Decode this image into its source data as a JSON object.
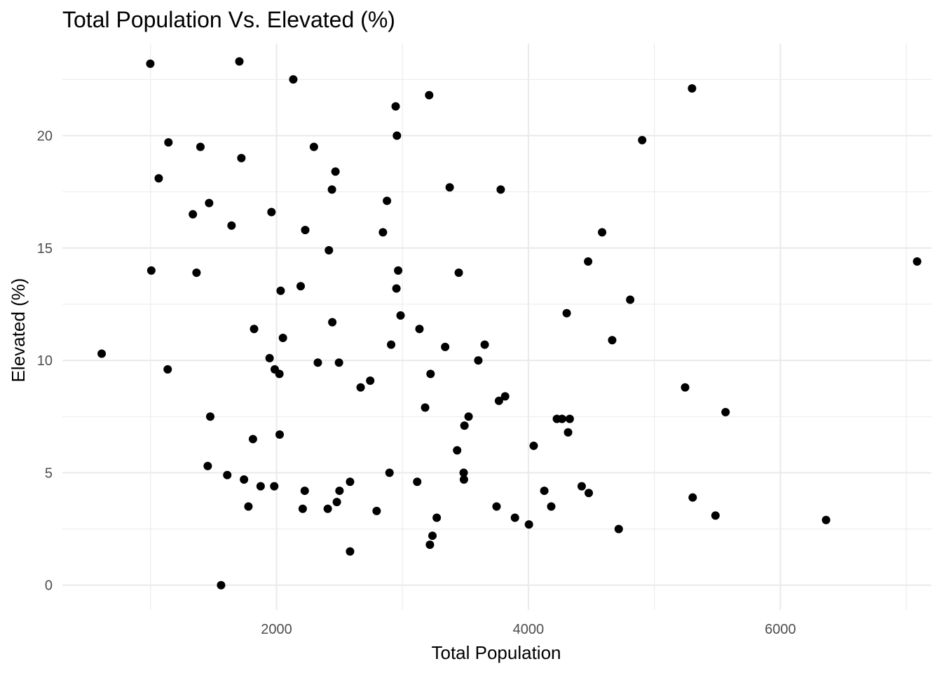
{
  "chart_data": {
    "type": "scatter",
    "title": "Total Population Vs. Elevated (%)",
    "xlabel": "Total Population",
    "ylabel": "Elevated (%)",
    "xlim": [
      300,
      7200
    ],
    "ylim": [
      -1.1,
      24.1
    ],
    "x_ticks": [
      2000,
      4000,
      6000
    ],
    "x_tick_labels": [
      "2000",
      "4000",
      "6000"
    ],
    "x_minor_ticks": [
      1000,
      3000,
      5000,
      7000
    ],
    "y_ticks": [
      0,
      5,
      10,
      15,
      20
    ],
    "y_tick_labels": [
      "0",
      "5",
      "10",
      "15",
      "20"
    ],
    "y_minor_ticks": [
      2.5,
      7.5,
      12.5,
      17.5,
      22.5
    ],
    "grid": true,
    "legend": "none",
    "point_color": "#000000",
    "points": [
      {
        "x": 998,
        "y": 23.2
      },
      {
        "x": 1705,
        "y": 23.3
      },
      {
        "x": 2133,
        "y": 22.5
      },
      {
        "x": 3212,
        "y": 21.8
      },
      {
        "x": 2946,
        "y": 21.3
      },
      {
        "x": 5299,
        "y": 22.1
      },
      {
        "x": 1142,
        "y": 19.7
      },
      {
        "x": 1396,
        "y": 19.5
      },
      {
        "x": 2297,
        "y": 19.5
      },
      {
        "x": 2956,
        "y": 20.0
      },
      {
        "x": 4903,
        "y": 19.8
      },
      {
        "x": 1721,
        "y": 19.0
      },
      {
        "x": 1065,
        "y": 18.1
      },
      {
        "x": 2468,
        "y": 18.4
      },
      {
        "x": 3375,
        "y": 17.7
      },
      {
        "x": 3780,
        "y": 17.6
      },
      {
        "x": 2440,
        "y": 17.6
      },
      {
        "x": 2877,
        "y": 17.1
      },
      {
        "x": 1465,
        "y": 17.0
      },
      {
        "x": 1336,
        "y": 16.5
      },
      {
        "x": 1960,
        "y": 16.6
      },
      {
        "x": 1643,
        "y": 16.0
      },
      {
        "x": 2228,
        "y": 15.8
      },
      {
        "x": 2845,
        "y": 15.7
      },
      {
        "x": 4585,
        "y": 15.7
      },
      {
        "x": 2416,
        "y": 14.9
      },
      {
        "x": 4474,
        "y": 14.4
      },
      {
        "x": 7086,
        "y": 14.4
      },
      {
        "x": 1006,
        "y": 14.0
      },
      {
        "x": 1365,
        "y": 13.9
      },
      {
        "x": 2966,
        "y": 14.0
      },
      {
        "x": 3447,
        "y": 13.9
      },
      {
        "x": 2192,
        "y": 13.3
      },
      {
        "x": 2952,
        "y": 13.2
      },
      {
        "x": 2033,
        "y": 13.1
      },
      {
        "x": 4808,
        "y": 12.7
      },
      {
        "x": 4304,
        "y": 12.1
      },
      {
        "x": 2985,
        "y": 12.0
      },
      {
        "x": 2443,
        "y": 11.7
      },
      {
        "x": 3135,
        "y": 11.4
      },
      {
        "x": 1822,
        "y": 11.4
      },
      {
        "x": 2051,
        "y": 11.0
      },
      {
        "x": 4665,
        "y": 10.9
      },
      {
        "x": 3653,
        "y": 10.7
      },
      {
        "x": 2910,
        "y": 10.7
      },
      {
        "x": 3339,
        "y": 10.6
      },
      {
        "x": 612,
        "y": 10.3
      },
      {
        "x": 1945,
        "y": 10.1
      },
      {
        "x": 3602,
        "y": 10.0
      },
      {
        "x": 2328,
        "y": 9.9
      },
      {
        "x": 2496,
        "y": 9.9
      },
      {
        "x": 1136,
        "y": 9.6
      },
      {
        "x": 1986,
        "y": 9.6
      },
      {
        "x": 2023,
        "y": 9.4
      },
      {
        "x": 3223,
        "y": 9.4
      },
      {
        "x": 2744,
        "y": 9.1
      },
      {
        "x": 2668,
        "y": 8.8
      },
      {
        "x": 5244,
        "y": 8.8
      },
      {
        "x": 3815,
        "y": 8.4
      },
      {
        "x": 3766,
        "y": 8.2
      },
      {
        "x": 3180,
        "y": 7.9
      },
      {
        "x": 5565,
        "y": 7.7
      },
      {
        "x": 1474,
        "y": 7.5
      },
      {
        "x": 3525,
        "y": 7.5
      },
      {
        "x": 4226,
        "y": 7.4
      },
      {
        "x": 4267,
        "y": 7.4
      },
      {
        "x": 4328,
        "y": 7.4
      },
      {
        "x": 3492,
        "y": 7.1
      },
      {
        "x": 4315,
        "y": 6.8
      },
      {
        "x": 2025,
        "y": 6.7
      },
      {
        "x": 1813,
        "y": 6.5
      },
      {
        "x": 4042,
        "y": 6.2
      },
      {
        "x": 3434,
        "y": 6.0
      },
      {
        "x": 1454,
        "y": 5.3
      },
      {
        "x": 2897,
        "y": 5.0
      },
      {
        "x": 3486,
        "y": 5.0
      },
      {
        "x": 1609,
        "y": 4.9
      },
      {
        "x": 1742,
        "y": 4.7
      },
      {
        "x": 3488,
        "y": 4.7
      },
      {
        "x": 3117,
        "y": 4.6
      },
      {
        "x": 2584,
        "y": 4.6
      },
      {
        "x": 1874,
        "y": 4.4
      },
      {
        "x": 1982,
        "y": 4.4
      },
      {
        "x": 4423,
        "y": 4.4
      },
      {
        "x": 4126,
        "y": 4.2
      },
      {
        "x": 2500,
        "y": 4.2
      },
      {
        "x": 2224,
        "y": 4.2
      },
      {
        "x": 4479,
        "y": 4.1
      },
      {
        "x": 5304,
        "y": 3.9
      },
      {
        "x": 2479,
        "y": 3.7
      },
      {
        "x": 1777,
        "y": 3.5
      },
      {
        "x": 4181,
        "y": 3.5
      },
      {
        "x": 3747,
        "y": 3.5
      },
      {
        "x": 2208,
        "y": 3.4
      },
      {
        "x": 2407,
        "y": 3.4
      },
      {
        "x": 2795,
        "y": 3.3
      },
      {
        "x": 5485,
        "y": 3.1
      },
      {
        "x": 3893,
        "y": 3.0
      },
      {
        "x": 3272,
        "y": 3.0
      },
      {
        "x": 6363,
        "y": 2.9
      },
      {
        "x": 4004,
        "y": 2.7
      },
      {
        "x": 4717,
        "y": 2.5
      },
      {
        "x": 3238,
        "y": 2.2
      },
      {
        "x": 3218,
        "y": 1.8
      },
      {
        "x": 2584,
        "y": 1.5
      },
      {
        "x": 1560,
        "y": 0.0
      }
    ]
  }
}
